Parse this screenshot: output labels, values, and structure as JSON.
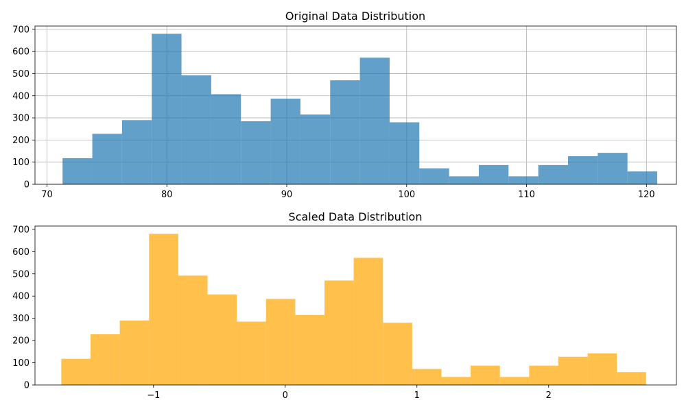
{
  "chart_data": [
    {
      "type": "bar",
      "title": "Original Data Distribution",
      "xlabel": "",
      "ylabel": "",
      "grid": true,
      "color": "#1f77b4",
      "bar_alpha": 0.7,
      "xlim": [
        69,
        122.5
      ],
      "ylim": [
        0,
        715
      ],
      "xticks": [
        70,
        80,
        90,
        100,
        110,
        120
      ],
      "yticks": [
        0,
        100,
        200,
        300,
        400,
        500,
        600,
        700
      ],
      "bin_start": 71.3,
      "bin_width": 2.48,
      "values": [
        118,
        228,
        290,
        680,
        492,
        407,
        285,
        387,
        315,
        470,
        572,
        280,
        72,
        36,
        87,
        36,
        87,
        127,
        142,
        58
      ]
    },
    {
      "type": "bar",
      "title": "Scaled Data Distribution",
      "xlabel": "",
      "ylabel": "",
      "grid": false,
      "color": "#ffa500",
      "bar_alpha": 0.7,
      "xlim": [
        -1.9,
        2.97
      ],
      "ylim": [
        0,
        715
      ],
      "xticks": [
        -1,
        0,
        1,
        2
      ],
      "xtick_labels": [
        "−1",
        "0",
        "1",
        "2"
      ],
      "yticks": [
        0,
        100,
        200,
        300,
        400,
        500,
        600,
        700
      ],
      "bin_start": -1.7,
      "bin_width": 0.222,
      "values": [
        118,
        228,
        290,
        680,
        492,
        407,
        285,
        387,
        315,
        470,
        572,
        280,
        72,
        36,
        87,
        36,
        87,
        127,
        142,
        58
      ]
    }
  ]
}
